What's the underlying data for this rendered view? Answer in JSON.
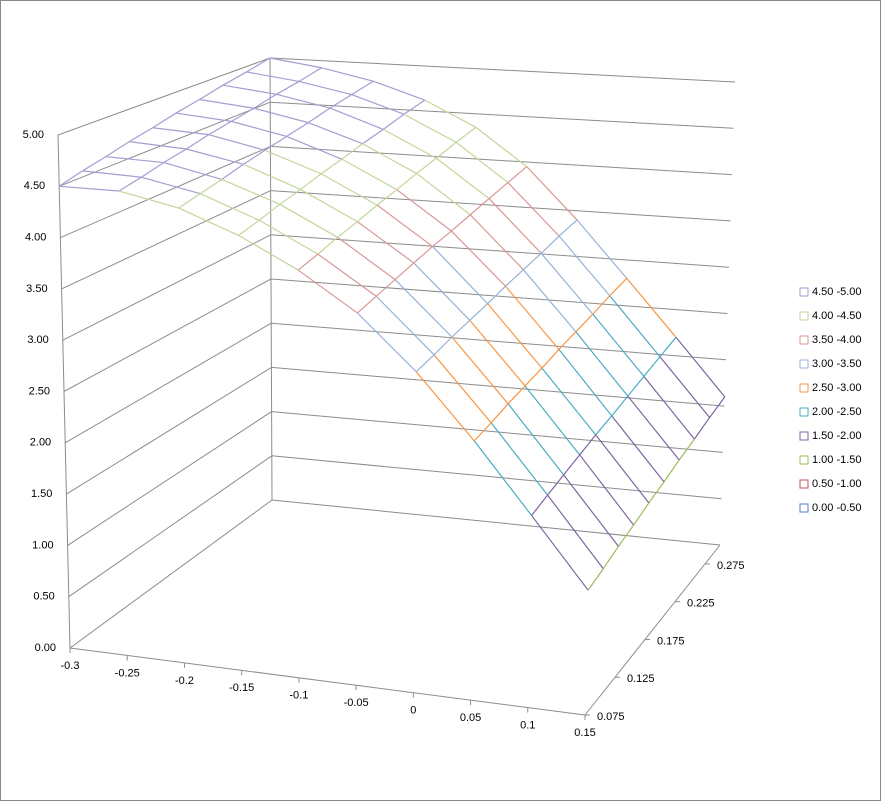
{
  "chart_data": {
    "type": "surface",
    "x": [
      -0.3,
      -0.25,
      -0.2,
      -0.15,
      -0.1,
      -0.05,
      0,
      0.05,
      0.1,
      0.15
    ],
    "depth": [
      0.075,
      0.1,
      0.125,
      0.15,
      0.175,
      0.2,
      0.225,
      0.25,
      0.275,
      0.3
    ],
    "z_values": [
      [
        4.5,
        4.52,
        4.42,
        4.22,
        3.95,
        3.6,
        3.1,
        2.5,
        1.85,
        1.2
      ],
      [
        4.56,
        4.56,
        4.46,
        4.26,
        3.99,
        3.64,
        3.13,
        2.53,
        1.89,
        1.24
      ],
      [
        4.61,
        4.61,
        4.5,
        4.31,
        4.04,
        3.68,
        3.17,
        2.57,
        1.93,
        1.29
      ],
      [
        4.67,
        4.65,
        4.55,
        4.35,
        4.08,
        3.72,
        3.2,
        2.6,
        1.97,
        1.33
      ],
      [
        4.72,
        4.7,
        4.59,
        4.4,
        4.13,
        3.76,
        3.23,
        2.63,
        2.01,
        1.38
      ],
      [
        4.78,
        4.74,
        4.63,
        4.44,
        4.17,
        3.79,
        3.27,
        2.67,
        2.04,
        1.42
      ],
      [
        4.83,
        4.78,
        4.67,
        4.49,
        4.22,
        3.83,
        3.3,
        2.7,
        2.08,
        1.47
      ],
      [
        4.89,
        4.83,
        4.72,
        4.53,
        4.26,
        3.87,
        3.33,
        2.73,
        2.12,
        1.51
      ],
      [
        4.94,
        4.87,
        4.76,
        4.58,
        4.31,
        3.91,
        3.37,
        2.77,
        2.16,
        1.56
      ],
      [
        5.0,
        4.92,
        4.8,
        4.62,
        4.35,
        3.95,
        3.4,
        2.8,
        2.2,
        1.6
      ]
    ],
    "xlim": [
      -0.3,
      0.15
    ],
    "xticks": [
      -0.3,
      -0.25,
      -0.2,
      -0.15,
      -0.1,
      -0.05,
      0,
      0.05,
      0.1,
      0.15
    ],
    "depthlim": [
      0.075,
      0.3
    ],
    "depthticks": [
      0.075,
      0.125,
      0.175,
      0.225,
      0.275
    ],
    "zlim": [
      0,
      5
    ],
    "zticks": [
      {
        "value": 0,
        "label": "0.00"
      },
      {
        "value": 0.5,
        "label": "0.50"
      },
      {
        "value": 1,
        "label": "1.00"
      },
      {
        "value": 1.5,
        "label": "1.50"
      },
      {
        "value": 2,
        "label": "2.00"
      },
      {
        "value": 2.5,
        "label": "2.50"
      },
      {
        "value": 3,
        "label": "3.00"
      },
      {
        "value": 3.5,
        "label": "3.50"
      },
      {
        "value": 4,
        "label": "4.00"
      },
      {
        "value": 4.5,
        "label": "4.50"
      },
      {
        "value": 5,
        "label": "5.00"
      }
    ],
    "grid": true,
    "legend": "right",
    "series": [
      {
        "name": "4.50 -5.00",
        "color": "#a09fd2",
        "range": [
          4.5,
          5
        ]
      },
      {
        "name": "4.00 -4.50",
        "color": "#c3d69b",
        "range": [
          4,
          4.5
        ]
      },
      {
        "name": "3.50 -4.00",
        "color": "#d99694",
        "range": [
          3.5,
          4
        ]
      },
      {
        "name": "3.00 -3.50",
        "color": "#95b3d7",
        "range": [
          3,
          3.5
        ]
      },
      {
        "name": "2.50 -3.00",
        "color": "#f79646",
        "range": [
          2.5,
          3
        ]
      },
      {
        "name": "2.00 -2.50",
        "color": "#4bacc6",
        "range": [
          2,
          2.5
        ]
      },
      {
        "name": "1.50 -2.00",
        "color": "#8064a2",
        "range": [
          1.5,
          2
        ]
      },
      {
        "name": "1.00 -1.50",
        "color": "#9bbb59",
        "range": [
          1,
          1.5
        ]
      },
      {
        "name": "0.50 -1.00",
        "color": "#c0504d",
        "range": [
          0.5,
          1
        ]
      },
      {
        "name": "0.00 -0.50",
        "color": "#4f81bd",
        "range": [
          0,
          0.5
        ]
      }
    ]
  }
}
